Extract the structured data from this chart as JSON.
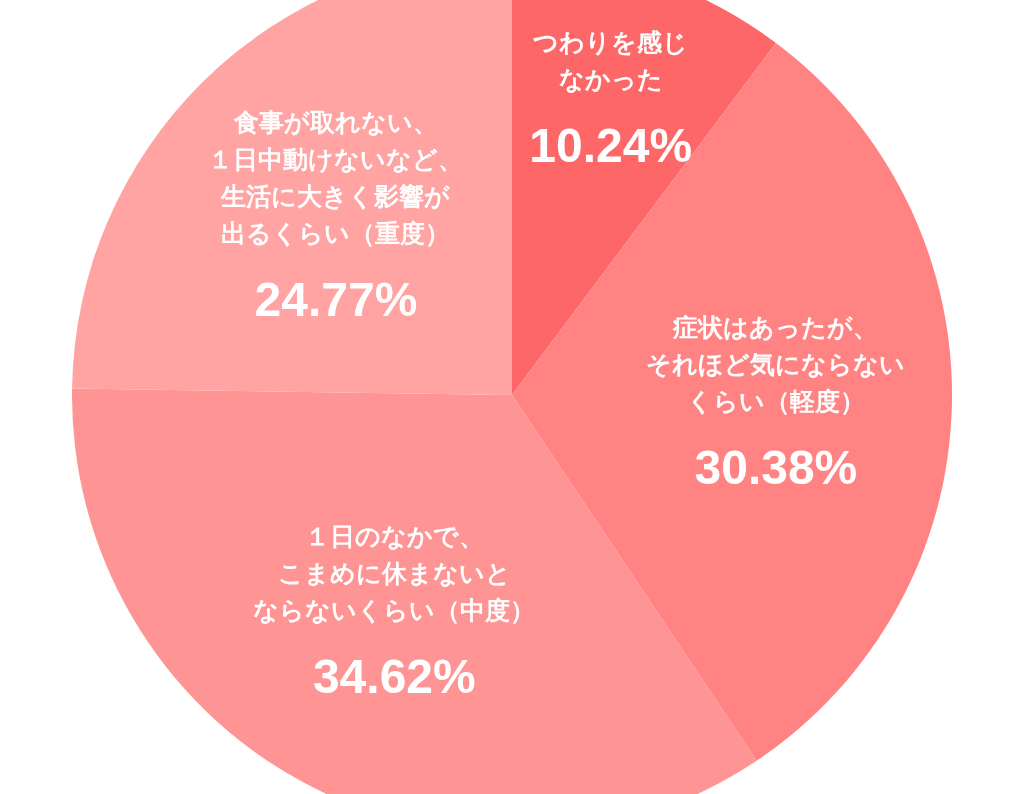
{
  "chart_data": {
    "type": "pie",
    "categories": [
      "つわりを感じなかった",
      "症状はあったが、それほど気にならないくらい（軽度）",
      "１日のなかで、こまめに休まないとならないくらい（中度）",
      "食事が取れない、１日中動けないなど、生活に大きく影響が出るくらい（重度）"
    ],
    "values": [
      10.24,
      30.38,
      34.62,
      24.77
    ],
    "value_labels": [
      "10.24%",
      "30.38%",
      "34.62%",
      "24.77%"
    ],
    "colors": [
      "#fe6767",
      "#ff8383",
      "#ff9494",
      "#ffa3a3"
    ]
  }
}
